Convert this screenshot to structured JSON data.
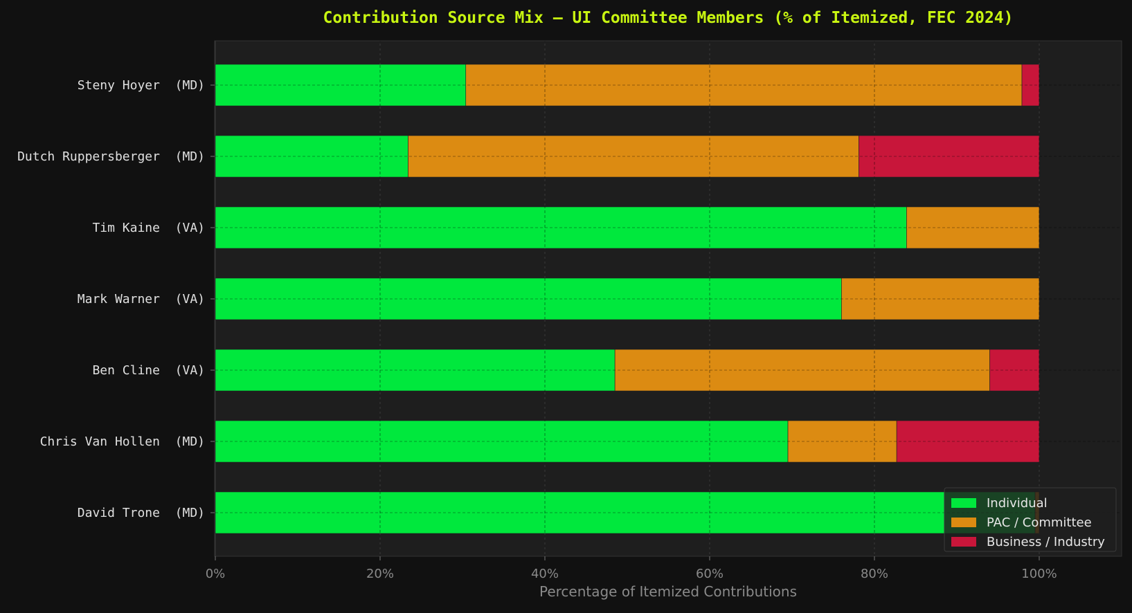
{
  "chart_data": {
    "type": "bar",
    "orientation": "horizontal",
    "stacked": true,
    "title": "Contribution Source Mix — UI Committee Members (% of Itemized, FEC 2024)",
    "xlabel": "Percentage of Itemized Contributions",
    "ylabel": "",
    "xlim": [
      0,
      110
    ],
    "xticks": [
      0,
      20,
      40,
      60,
      80,
      100
    ],
    "xtick_labels": [
      "0%",
      "20%",
      "40%",
      "60%",
      "80%",
      "100%"
    ],
    "grid": true,
    "legend_position": "bottom-right",
    "categories": [
      "Steny Hoyer  (MD)",
      "Dutch Ruppersberger  (MD)",
      "Tim Kaine  (VA)",
      "Mark Warner  (VA)",
      "Ben Cline  (VA)",
      "Chris Van Hollen  (MD)",
      "David Trone  (MD)"
    ],
    "series": [
      {
        "name": "Individual",
        "color": "#00e83d",
        "values": [
          30.4,
          23.4,
          83.9,
          76.0,
          48.5,
          69.5,
          99.5
        ]
      },
      {
        "name": "PAC / Committee",
        "color": "#dc8b12",
        "values": [
          67.5,
          54.7,
          16.1,
          24.0,
          45.5,
          13.2,
          0.5
        ]
      },
      {
        "name": "Business / Industry",
        "color": "#c8163a",
        "values": [
          2.1,
          21.9,
          0.0,
          0.0,
          6.0,
          17.3,
          0.0
        ]
      }
    ]
  }
}
